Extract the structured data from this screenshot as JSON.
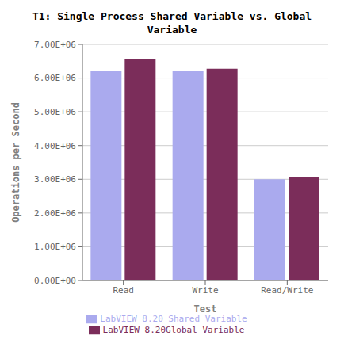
{
  "chart_data": {
    "type": "bar",
    "title": "T1: Single Process Shared Variable vs. Global\nVariable",
    "xlabel": "Test",
    "ylabel": "Operations per Second",
    "categories": [
      "Read",
      "Write",
      "Read/Write"
    ],
    "series": [
      {
        "name": "LabVIEW 8.20 Shared Variable",
        "color": "#aaaaee",
        "values": [
          6200000,
          6200000,
          3000000
        ]
      },
      {
        "name": "LabVIEW 8.20Global Variable",
        "color": "#7B2D5A",
        "values": [
          6580000,
          6280000,
          3060000
        ]
      }
    ],
    "ylim": [
      0,
      7000000
    ],
    "yticks": [
      {
        "value": 0,
        "label": "0.00E+00"
      },
      {
        "value": 1000000,
        "label": "1.00E+06"
      },
      {
        "value": 2000000,
        "label": "2.00E+06"
      },
      {
        "value": 3000000,
        "label": "3.00E+06"
      },
      {
        "value": 4000000,
        "label": "4.00E+06"
      },
      {
        "value": 5000000,
        "label": "5.00E+06"
      },
      {
        "value": 6000000,
        "label": "6.00E+06"
      },
      {
        "value": 7000000,
        "label": "7.00E+06"
      }
    ],
    "grid": true
  }
}
